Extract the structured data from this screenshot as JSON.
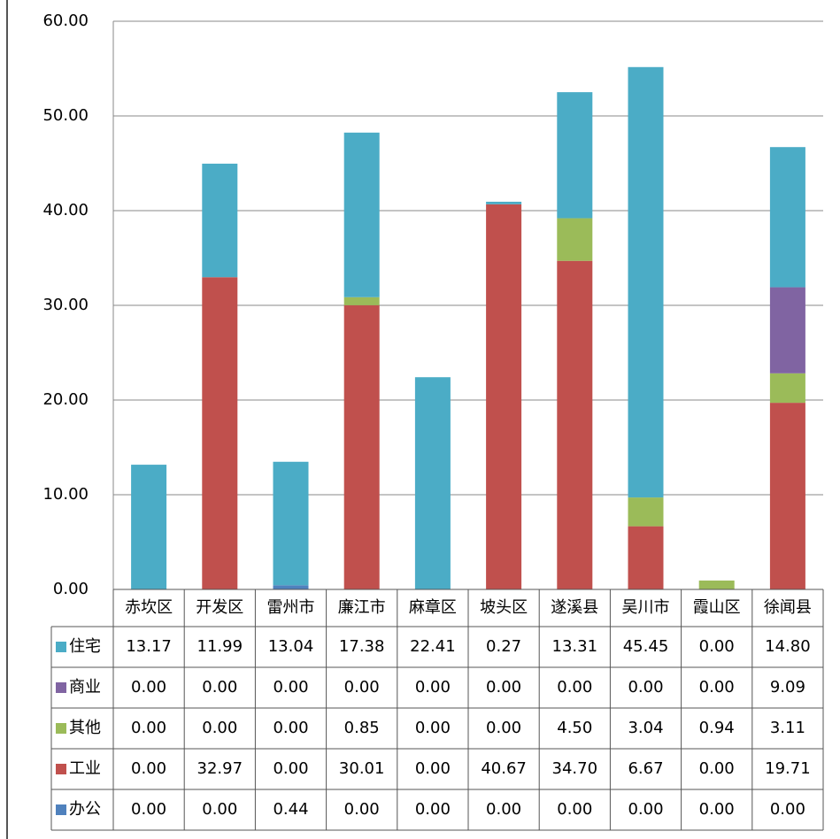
{
  "chart_data": {
    "type": "stacked_bar",
    "categories": [
      "赤坎区",
      "开发区",
      "雷州市",
      "廉江市",
      "麻章区",
      "坡头区",
      "遂溪县",
      "吴川市",
      "霞山区",
      "徐闻县"
    ],
    "series": [
      {
        "name": "住宅",
        "color": "#4bacc6",
        "values": [
          13.17,
          11.99,
          13.04,
          17.38,
          22.41,
          0.27,
          13.31,
          45.45,
          0,
          14.8
        ],
        "value_labels": [
          "13.17",
          "11.99",
          "13.04",
          "17.38",
          "22.41",
          "0.27",
          "13.31",
          "45.45",
          "0.00",
          "14.80"
        ]
      },
      {
        "name": "商业",
        "color": "#8064a2",
        "values": [
          0,
          0,
          0,
          0,
          0,
          0,
          0,
          0,
          0,
          9.09
        ],
        "value_labels": [
          "0.00",
          "0.00",
          "0.00",
          "0.00",
          "0.00",
          "0.00",
          "0.00",
          "0.00",
          "0.00",
          "9.09"
        ]
      },
      {
        "name": "其他",
        "color": "#9bbb59",
        "values": [
          0,
          0,
          0,
          0.85,
          0,
          0,
          4.5,
          3.04,
          0.94,
          3.11
        ],
        "value_labels": [
          "0.00",
          "0.00",
          "0.00",
          "0.85",
          "0.00",
          "0.00",
          "4.50",
          "3.04",
          "0.94",
          "3.11"
        ]
      },
      {
        "name": "工业",
        "color": "#c0504d",
        "values": [
          0,
          32.97,
          0,
          30.01,
          0,
          40.67,
          34.7,
          6.67,
          0,
          19.71
        ],
        "value_labels": [
          "0.00",
          "32.97",
          "0.00",
          "30.01",
          "0.00",
          "40.67",
          "34.70",
          "6.67",
          "0.00",
          "19.71"
        ]
      },
      {
        "name": "办公",
        "color": "#4f81bd",
        "values": [
          0,
          0,
          0.44,
          0,
          0,
          0,
          0,
          0,
          0,
          0
        ],
        "value_labels": [
          "0.00",
          "0.00",
          "0.44",
          "0.00",
          "0.00",
          "0.00",
          "0.00",
          "0.00",
          "0.00",
          "0.00"
        ]
      }
    ],
    "ylim": [
      0,
      60
    ],
    "yticks": [
      {
        "value": 0,
        "label": "0.00"
      },
      {
        "value": 10,
        "label": "10.00"
      },
      {
        "value": 20,
        "label": "20.00"
      },
      {
        "value": 30,
        "label": "30.00"
      },
      {
        "value": 40,
        "label": "40.00"
      },
      {
        "value": 50,
        "label": "50.00"
      },
      {
        "value": 60,
        "label": "60.00"
      }
    ],
    "grid": true
  }
}
